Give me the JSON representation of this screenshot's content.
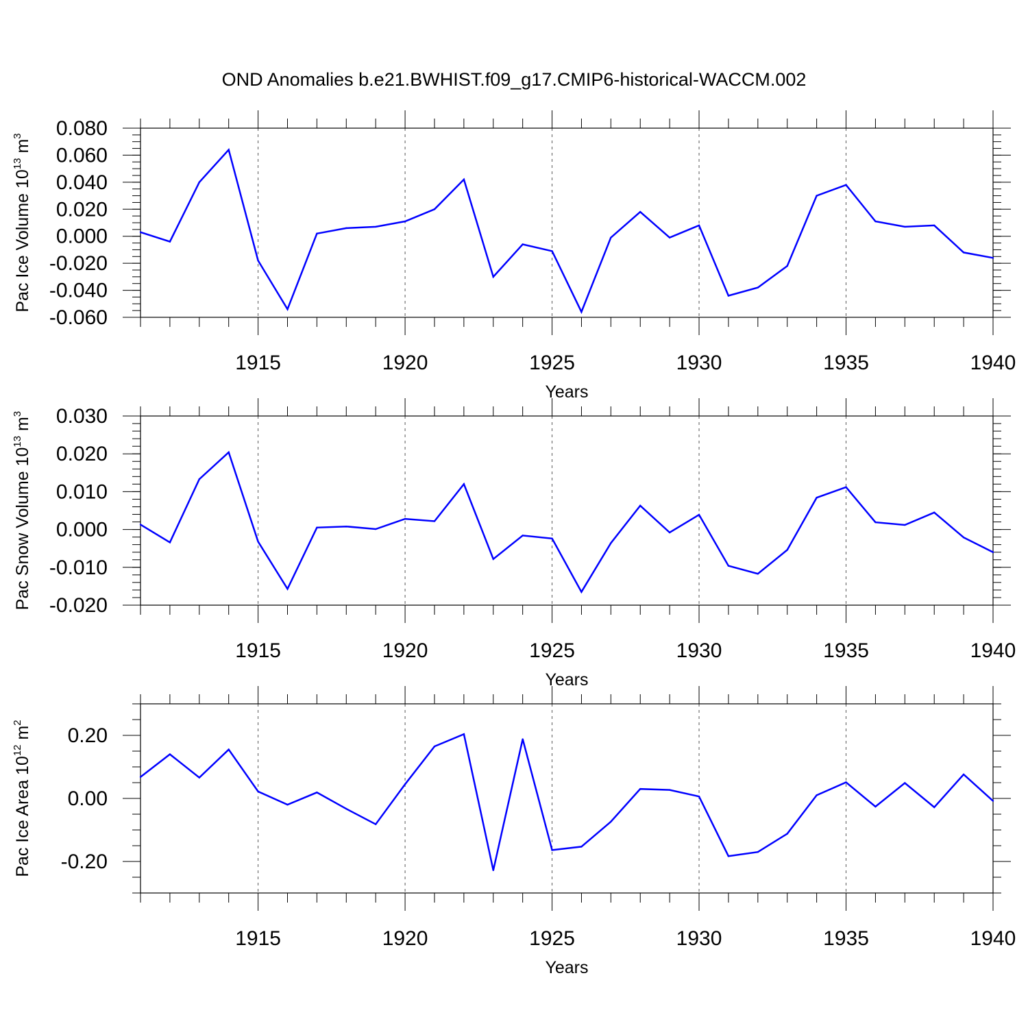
{
  "title": "OND Anomalies b.e21.BWHIST.f09_g17.CMIP6-historical-WACCM.002",
  "colors": {
    "line": "#0000ff",
    "axis": "#000000",
    "grid": "#555555"
  },
  "chart_data": [
    {
      "type": "line",
      "xlabel": "Years",
      "ylabel": {
        "main": "Pac Ice Volume 10",
        "exp": "13",
        "unit": " m",
        "unit_exp": "3"
      },
      "xlim": [
        1911,
        1940
      ],
      "ylim": [
        -0.06,
        0.08
      ],
      "x_ticks": [
        1915,
        1920,
        1925,
        1930,
        1935,
        1940
      ],
      "y_ticks": [
        -0.06,
        -0.04,
        -0.02,
        0.0,
        0.02,
        0.04,
        0.06,
        0.08
      ],
      "y_tick_labels": [
        "-0.060",
        "-0.040",
        "-0.020",
        "0.000",
        "0.020",
        "0.040",
        "0.060",
        "0.080"
      ],
      "y_minor_step": 0.005,
      "grid": "vertical dashed at major x ticks",
      "x": [
        1911,
        1912,
        1913,
        1914,
        1915,
        1916,
        1917,
        1918,
        1919,
        1920,
        1921,
        1922,
        1923,
        1924,
        1925,
        1926,
        1927,
        1928,
        1929,
        1930,
        1931,
        1932,
        1933,
        1934,
        1935,
        1936,
        1937,
        1938,
        1939,
        1940
      ],
      "values": [
        0.003,
        -0.004,
        0.04,
        0.064,
        -0.018,
        -0.054,
        0.002,
        0.006,
        0.007,
        0.011,
        0.02,
        0.042,
        -0.03,
        -0.006,
        -0.011,
        -0.056,
        -0.001,
        0.018,
        -0.001,
        0.008,
        -0.044,
        -0.038,
        -0.022,
        0.03,
        0.038,
        0.011,
        0.007,
        0.008,
        -0.012,
        -0.016
      ]
    },
    {
      "type": "line",
      "xlabel": "Years",
      "ylabel": {
        "main": "Pac Snow Volume 10",
        "exp": "13",
        "unit": " m",
        "unit_exp": "3"
      },
      "xlim": [
        1911,
        1940
      ],
      "ylim": [
        -0.02,
        0.03
      ],
      "x_ticks": [
        1915,
        1920,
        1925,
        1930,
        1935,
        1940
      ],
      "y_ticks": [
        -0.02,
        -0.01,
        0.0,
        0.01,
        0.02,
        0.03
      ],
      "y_tick_labels": [
        "-0.020",
        "-0.010",
        "0.000",
        "0.010",
        "0.020",
        "0.030"
      ],
      "y_minor_step": 0.002,
      "grid": "vertical dashed at major x ticks",
      "x": [
        1911,
        1912,
        1913,
        1914,
        1915,
        1916,
        1917,
        1918,
        1919,
        1920,
        1921,
        1922,
        1923,
        1924,
        1925,
        1926,
        1927,
        1928,
        1929,
        1930,
        1931,
        1932,
        1933,
        1934,
        1935,
        1936,
        1937,
        1938,
        1939,
        1940
      ],
      "values": [
        0.0013,
        -0.0034,
        0.0133,
        0.0204,
        -0.0032,
        -0.0157,
        0.0005,
        0.0008,
        0.0001,
        0.0028,
        0.0022,
        0.012,
        -0.0078,
        -0.0016,
        -0.0024,
        -0.0165,
        -0.0036,
        0.0063,
        -0.0008,
        0.0039,
        -0.0096,
        -0.0117,
        -0.0054,
        0.0084,
        0.0112,
        0.0019,
        0.0012,
        0.0045,
        -0.0021,
        -0.006
      ]
    },
    {
      "type": "line",
      "xlabel": "Years",
      "ylabel": {
        "main": "Pac Ice Area 10",
        "exp": "12",
        "unit": " m",
        "unit_exp": "2"
      },
      "xlim": [
        1911,
        1940
      ],
      "ylim": [
        -0.3,
        0.3
      ],
      "x_ticks": [
        1915,
        1920,
        1925,
        1930,
        1935,
        1940
      ],
      "y_ticks": [
        -0.2,
        0.0,
        0.2
      ],
      "y_tick_labels": [
        "-0.20",
        "0.00",
        "0.20"
      ],
      "y_minor_step": 0.05,
      "grid": "vertical dashed at major x ticks",
      "x": [
        1911,
        1912,
        1913,
        1914,
        1915,
        1916,
        1917,
        1918,
        1919,
        1920,
        1921,
        1922,
        1923,
        1924,
        1925,
        1926,
        1927,
        1928,
        1929,
        1930,
        1931,
        1932,
        1933,
        1934,
        1935,
        1936,
        1937,
        1938,
        1939,
        1940
      ],
      "values": [
        0.068,
        0.14,
        0.066,
        0.155,
        0.022,
        -0.02,
        0.019,
        -0.033,
        -0.082,
        0.045,
        0.165,
        0.204,
        -0.228,
        0.188,
        -0.164,
        -0.153,
        -0.074,
        0.03,
        0.027,
        0.006,
        -0.183,
        -0.17,
        -0.112,
        0.01,
        0.051,
        -0.026,
        0.049,
        -0.028,
        0.076,
        -0.008
      ]
    }
  ]
}
